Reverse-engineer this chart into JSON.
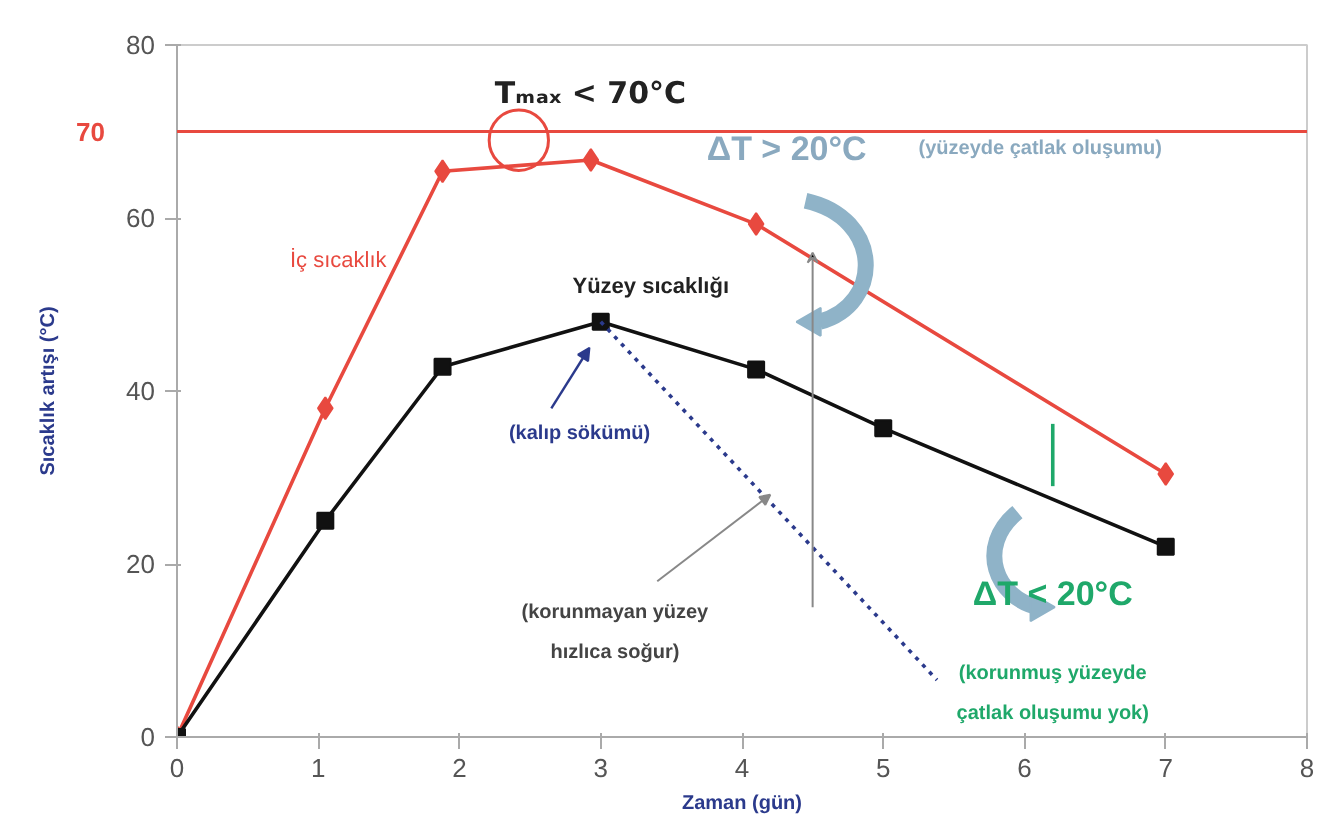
{
  "chart_data": {
    "type": "line",
    "xlabel": "Zaman (gün)",
    "ylabel": "Sıcaklık artışı (°C)",
    "xlim": [
      0,
      8
    ],
    "ylim": [
      0,
      80
    ],
    "xticks": [
      0,
      1,
      2,
      3,
      4,
      5,
      6,
      7,
      8
    ],
    "yticks": [
      0,
      20,
      40,
      60,
      80
    ],
    "grid": false,
    "series": [
      {
        "name": "İç sıcaklık",
        "color": "#e8493f",
        "marker": "diamond",
        "line_style": "solid",
        "x": [
          0,
          1.05,
          1.88,
          2.93,
          4.1,
          7.0
        ],
        "values": [
          0,
          38,
          65.4,
          66.7,
          59.3,
          30.4
        ]
      },
      {
        "name": "Yüzey sıcaklığı",
        "color": "#111111",
        "marker": "square",
        "line_style": "solid",
        "x": [
          0,
          1.05,
          1.88,
          3.0,
          4.1,
          5.0,
          7.0
        ],
        "values": [
          0,
          25,
          42.8,
          48,
          42.5,
          35.7,
          22
        ]
      },
      {
        "color": "#2b3a8c",
        "marker": "none",
        "line_style": "dotted",
        "x": [
          3.0,
          5.38
        ],
        "values": [
          48,
          6.6
        ]
      },
      {
        "color": "#1fa86a",
        "marker": "none",
        "line_style": "solid",
        "x": [
          6.2,
          6.2
        ],
        "values": [
          29,
          36.2
        ]
      }
    ],
    "ref_lines": [
      {
        "axis": "y",
        "value": 70,
        "label": "70",
        "color": "#e8493f"
      }
    ],
    "annotations": [
      {
        "text": "Tₘₐₓ < 70°C",
        "x": 2.42,
        "y": 69
      },
      "ΔT > 20°C",
      "(yüzeyde çatlak oluşumu)",
      "(kalıp sökümü)",
      {
        "text": "(korunmayan yüzey hızlıca soğur)",
        "x": 4.2,
        "y": 28
      },
      "ΔT < 20°C",
      "(korunmuş yüzeyde çatlak oluşumu yok)"
    ]
  }
}
